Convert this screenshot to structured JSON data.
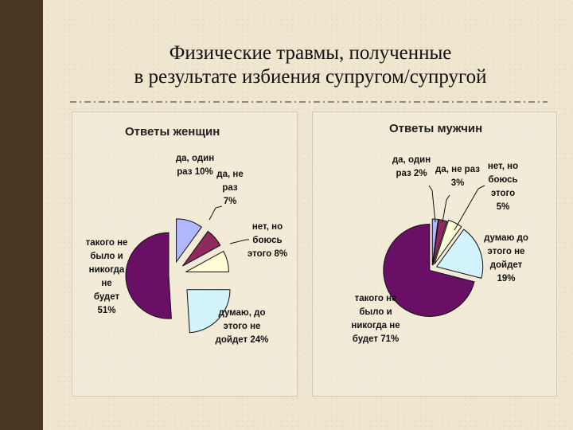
{
  "page": {
    "title_line1": "Физические травмы, полученные",
    "title_line2": "в результате избиения супругом/супругой"
  },
  "colors": {
    "sidebar": "#4a3522",
    "slice_1": "#b0b8ff",
    "slice_2": "#8e2a5c",
    "slice_3": "#fffdd6",
    "slice_4": "#d3f4fc",
    "slice_5": "#6a0f66",
    "outline": "#111111"
  },
  "chart_data": [
    {
      "type": "pie",
      "title": "Ответы женщин",
      "slices": [
        {
          "label": "да, один раз 10%",
          "value": 10
        },
        {
          "label": "да, не раз 7%",
          "value": 7
        },
        {
          "label": "нет, но боюсь этого 8%",
          "value": 8
        },
        {
          "label": "думаю, до этого не дойдет 24%",
          "value": 24
        },
        {
          "label": "такого не было и никогда не будет 51%",
          "value": 51
        }
      ]
    },
    {
      "type": "pie",
      "title": "Ответы мужчин",
      "slices": [
        {
          "label": "да, один раз 2%",
          "value": 2
        },
        {
          "label": "да, не раз 3%",
          "value": 3
        },
        {
          "label": "нет, но боюсь этого 5%",
          "value": 5
        },
        {
          "label": "думаю до этого не дойдет 19%",
          "value": 19
        },
        {
          "label": "такого не было и никогда не будет 71%",
          "value": 71
        }
      ]
    }
  ]
}
